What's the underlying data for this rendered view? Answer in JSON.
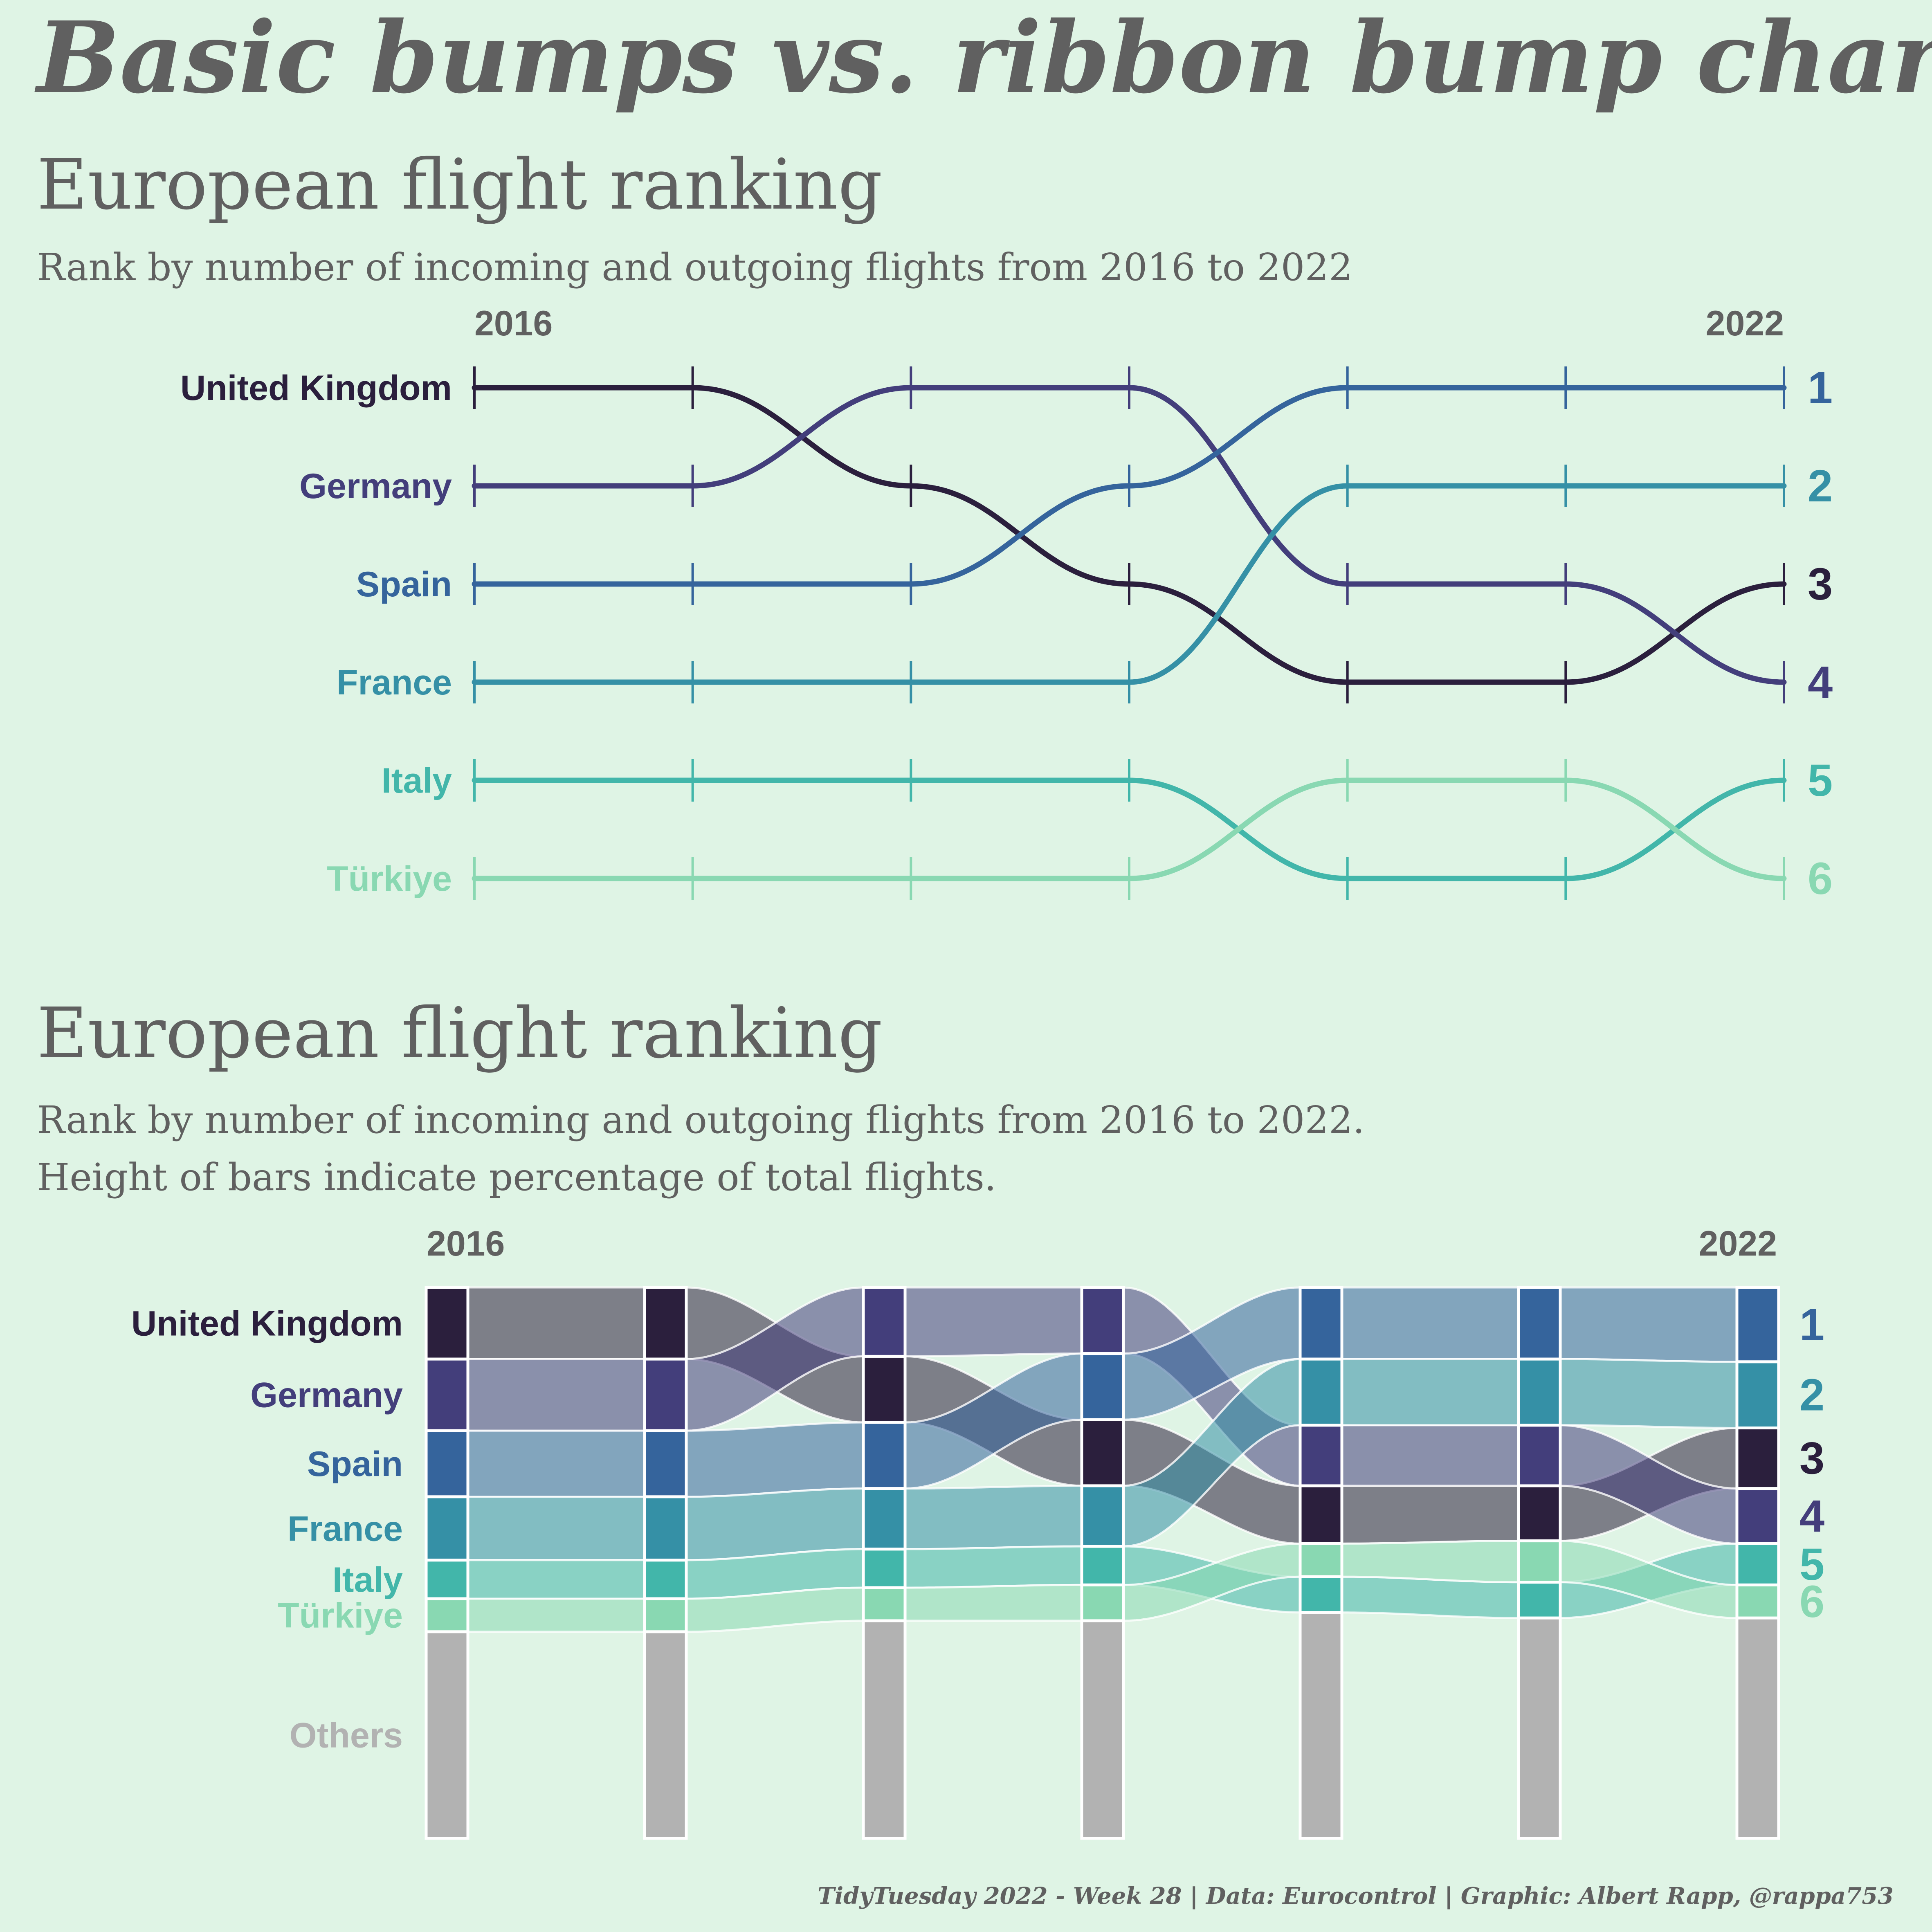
{
  "title": "Basic bumps vs. ribbon bump charts",
  "caption": "TidyTuesday 2022 - Week 28 | Data: Eurocontrol | Graphic: Albert Rapp, @rappa753",
  "colors": {
    "background": "#dff4e5",
    "text": "#606060",
    "others": "#b2b2b2"
  },
  "chart_data": [
    {
      "type": "line",
      "title": "European flight ranking",
      "subtitle": "Rank by number of incoming and outgoing flights from 2016 to 2022",
      "x": [
        2016,
        2017,
        2018,
        2019,
        2020,
        2021,
        2022
      ],
      "x_tick_labels": [
        "2016",
        "2022"
      ],
      "y_reversed": true,
      "end_labels": [
        "1",
        "2",
        "3",
        "4",
        "5",
        "6"
      ],
      "series": [
        {
          "name": "United Kingdom",
          "color": "#2b1f3d",
          "ranks": [
            1,
            1,
            2,
            3,
            4,
            4,
            3
          ]
        },
        {
          "name": "Germany",
          "color": "#433e7b",
          "ranks": [
            2,
            2,
            1,
            1,
            3,
            3,
            4
          ]
        },
        {
          "name": "Spain",
          "color": "#35649c",
          "ranks": [
            3,
            3,
            3,
            2,
            1,
            1,
            1
          ]
        },
        {
          "name": "France",
          "color": "#3590a6",
          "ranks": [
            4,
            4,
            4,
            4,
            2,
            2,
            2
          ]
        },
        {
          "name": "Italy",
          "color": "#42b6aa",
          "ranks": [
            5,
            5,
            5,
            5,
            6,
            6,
            5
          ]
        },
        {
          "name": "Türkiye",
          "color": "#89d8b2",
          "ranks": [
            6,
            6,
            6,
            6,
            5,
            5,
            6
          ]
        }
      ]
    },
    {
      "type": "area",
      "title": "European flight ranking",
      "subtitle_lines": [
        "Rank by number of incoming and outgoing flights from 2016 to 2022.",
        "Height of bars indicate percentage of total flights."
      ],
      "x": [
        2016,
        2017,
        2018,
        2019,
        2020,
        2021,
        2022
      ],
      "x_tick_labels": [
        "2016",
        "2022"
      ],
      "end_labels": [
        "1",
        "2",
        "3",
        "4",
        "5",
        "6"
      ],
      "others_label": "Others",
      "others_share_pct": [
        35,
        36,
        39,
        39,
        40,
        39,
        38
      ],
      "series": [
        {
          "name": "United Kingdom",
          "color": "#2b1f3d",
          "ranks": [
            1,
            1,
            2,
            3,
            4,
            4,
            3
          ],
          "share_pct": [
            13,
            13,
            12,
            12,
            10.5,
            10,
            11
          ]
        },
        {
          "name": "Germany",
          "color": "#433e7b",
          "ranks": [
            2,
            2,
            1,
            1,
            3,
            3,
            4
          ],
          "share_pct": [
            13,
            13,
            12.5,
            12,
            11,
            11,
            10
          ]
        },
        {
          "name": "Spain",
          "color": "#35649c",
          "ranks": [
            3,
            3,
            3,
            2,
            1,
            1,
            1
          ],
          "share_pct": [
            12,
            12,
            12,
            12,
            13,
            13,
            13.5
          ]
        },
        {
          "name": "France",
          "color": "#3590a6",
          "ranks": [
            4,
            4,
            4,
            4,
            2,
            2,
            2
          ],
          "share_pct": [
            11.5,
            11.5,
            11,
            11,
            12,
            12,
            12
          ]
        },
        {
          "name": "Italy",
          "color": "#42b6aa",
          "ranks": [
            5,
            5,
            5,
            5,
            6,
            6,
            5
          ],
          "share_pct": [
            7,
            7,
            7,
            7,
            6.5,
            6.5,
            7.5
          ]
        },
        {
          "name": "Türkiye",
          "color": "#89d8b2",
          "ranks": [
            6,
            6,
            6,
            6,
            5,
            5,
            6
          ],
          "share_pct": [
            6,
            6,
            6,
            6.5,
            6,
            7.5,
            6
          ]
        }
      ]
    }
  ]
}
